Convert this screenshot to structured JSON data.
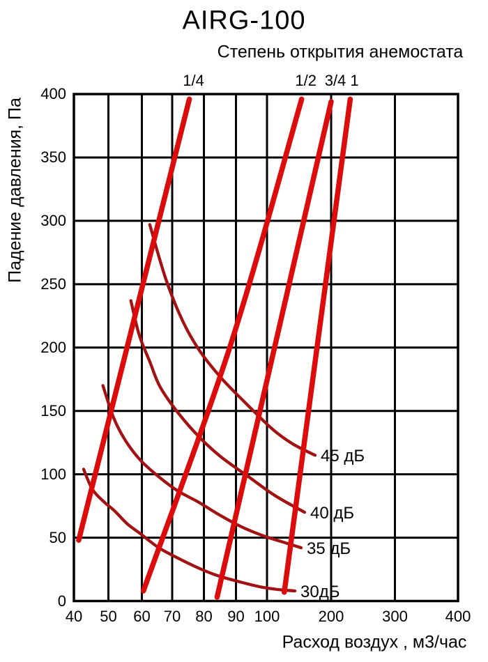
{
  "chart_data": {
    "type": "line",
    "title": "AIRG-100",
    "subtitle": "Степень открытия анемостата",
    "xlabel": "Расход воздух , м3/час",
    "ylabel": "Падение давления, Па",
    "x_scale": "compressed-log: equal spacing for ticks 40-100, wider equal spacing for 100-400",
    "xlim": [
      40,
      400
    ],
    "ylim": [
      0,
      400
    ],
    "x_ticks": [
      40,
      50,
      60,
      70,
      80,
      90,
      100,
      200,
      300,
      400
    ],
    "y_ticks": [
      0,
      50,
      100,
      150,
      200,
      250,
      300,
      350,
      400
    ],
    "grid": true,
    "legend_position": "none",
    "colors": {
      "opening_curve": "#dd0c0c",
      "noise_curve": "#a31212",
      "grid": "#000000",
      "background": "#ffffff",
      "text": "#000000"
    },
    "series": [
      {
        "name": "opening-1-4",
        "group": "opening",
        "label": "1/4",
        "points": [
          [
            41.4,
            48
          ],
          [
            75.4,
            396
          ]
        ]
      },
      {
        "name": "opening-1-2",
        "group": "opening",
        "label": "1/2",
        "points": [
          [
            60.5,
            8
          ],
          [
            88.3,
            202
          ],
          [
            154,
            396
          ]
        ]
      },
      {
        "name": "opening-3-4",
        "group": "opening",
        "label": "3/4",
        "points": [
          [
            84.1,
            3
          ],
          [
            200,
            394
          ]
        ]
      },
      {
        "name": "opening-1",
        "group": "opening",
        "label": "1",
        "points": [
          [
            127,
            7
          ],
          [
            230,
            396
          ]
        ]
      },
      {
        "name": "noise-45db",
        "group": "noise",
        "label": "45 дБ",
        "points": [
          [
            62.6,
            297
          ],
          [
            67.9,
            254
          ],
          [
            73.3,
            221
          ],
          [
            78.5,
            198
          ],
          [
            85.4,
            176
          ],
          [
            93.2,
            156
          ],
          [
            107.6,
            136
          ],
          [
            140,
            124
          ],
          [
            175,
            115
          ]
        ]
      },
      {
        "name": "noise-40db",
        "group": "noise",
        "label": "40 дБ",
        "points": [
          [
            56.7,
            237
          ],
          [
            59.2,
            210
          ],
          [
            62.6,
            189
          ],
          [
            66,
            169
          ],
          [
            71.7,
            149
          ],
          [
            78.3,
            130
          ],
          [
            85.2,
            114
          ],
          [
            94.1,
            98
          ],
          [
            113,
            83
          ],
          [
            158.7,
            70
          ]
        ]
      },
      {
        "name": "noise-35db",
        "group": "noise",
        "label": "35 дБ",
        "points": [
          [
            48.4,
            170
          ],
          [
            51.5,
            145
          ],
          [
            55,
            127
          ],
          [
            59.6,
            111
          ],
          [
            65.6,
            98
          ],
          [
            71.7,
            87
          ],
          [
            78.3,
            78
          ],
          [
            84.1,
            69
          ],
          [
            91.4,
            59
          ],
          [
            98.2,
            52
          ],
          [
            121.7,
            47
          ],
          [
            153.3,
            42
          ]
        ]
      },
      {
        "name": "noise-30db",
        "group": "noise",
        "label": "30дБ",
        "points": [
          [
            42.8,
            104
          ],
          [
            45.4,
            88
          ],
          [
            48.8,
            78
          ],
          [
            51.9,
            71
          ],
          [
            55.6,
            61
          ],
          [
            59.6,
            53
          ],
          [
            65.6,
            42
          ],
          [
            71.7,
            34
          ],
          [
            78.3,
            26
          ],
          [
            84.3,
            20
          ],
          [
            91.4,
            15
          ],
          [
            98.2,
            11
          ],
          [
            118.5,
            9
          ],
          [
            143.5,
            8
          ]
        ]
      }
    ]
  }
}
